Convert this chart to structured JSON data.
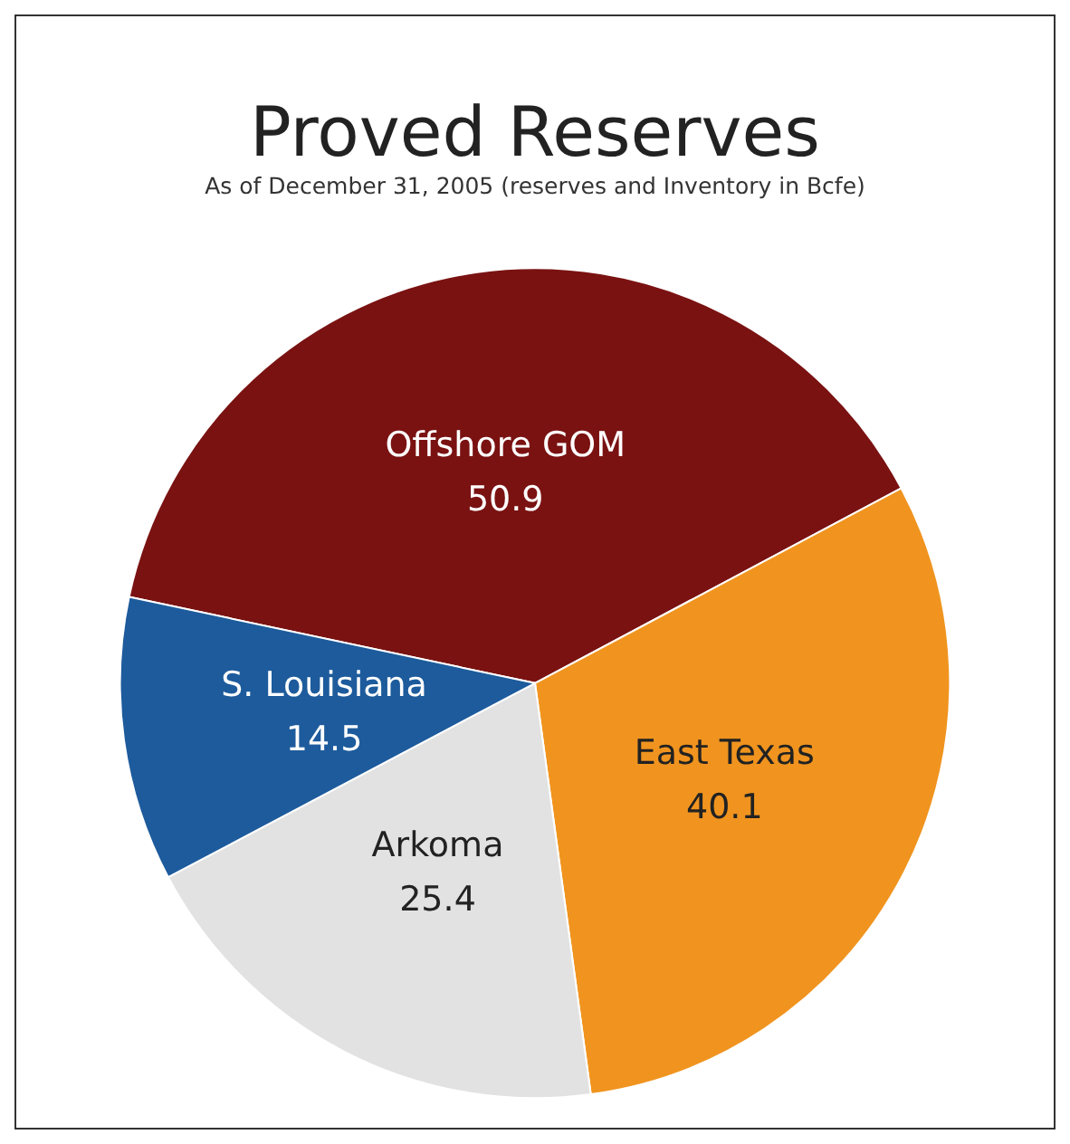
{
  "chart_data": {
    "type": "pie",
    "title": "Proved Reserves",
    "subtitle": "As of December 31, 2005 (reserves and Inventory in Bcfe)",
    "categories": [
      "Offshore GOM",
      "East Texas",
      "Arkoma",
      "S. Louisiana"
    ],
    "values": [
      50.9,
      40.1,
      25.4,
      14.5
    ],
    "colors": [
      "#7a1212",
      "#f0941f",
      "#e2e2e2",
      "#1d5b9c"
    ],
    "data_labels": true,
    "legend": false
  }
}
